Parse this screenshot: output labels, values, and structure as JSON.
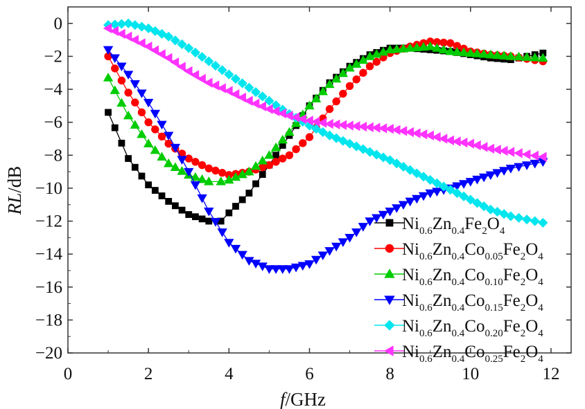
{
  "chart_data": {
    "type": "line",
    "xlabel": {
      "var": "f",
      "unit": "/GHz"
    },
    "ylabel": {
      "var": "RL",
      "unit": "/dB"
    },
    "xlim": [
      0,
      12.5
    ],
    "ylim": [
      -20,
      1
    ],
    "xticks": [
      "0",
      "2",
      "4",
      "6",
      "8",
      "10",
      "12"
    ],
    "yticks": [
      "0",
      "−2",
      "−4",
      "−6",
      "−8",
      "−10",
      "−12",
      "−14",
      "−16",
      "−18",
      "−20"
    ],
    "grid": false,
    "legend_position": "bottom-right",
    "series": [
      {
        "name": "Ni0.6Zn0.4Fe2O4",
        "legend_parts": [
          [
            "Ni",
            ""
          ],
          [
            "0.6",
            "sub"
          ],
          [
            "Zn",
            ""
          ],
          [
            "0.4",
            "sub"
          ],
          [
            "Fe",
            ""
          ],
          [
            "2",
            "sub"
          ],
          [
            "O",
            ""
          ],
          [
            "4",
            "sub"
          ]
        ],
        "color": "#000000",
        "marker": "square",
        "x": [
          1.0,
          1.5,
          2.0,
          2.5,
          3.0,
          3.5,
          3.8,
          4.0,
          4.5,
          5.0,
          5.5,
          6.0,
          6.5,
          7.0,
          7.5,
          8.0,
          8.5,
          9.0,
          9.5,
          10.0,
          10.5,
          11.0,
          11.8
        ],
        "y": [
          -5.4,
          -8.2,
          -9.8,
          -10.8,
          -11.6,
          -12.0,
          -12.0,
          -11.5,
          -10.3,
          -8.6,
          -6.8,
          -5.0,
          -3.6,
          -2.6,
          -1.9,
          -1.5,
          -1.5,
          -1.6,
          -1.7,
          -1.9,
          -2.1,
          -2.2,
          -1.8
        ]
      },
      {
        "name": "Ni0.6Zn0.4Co0.05Fe2O4",
        "legend_parts": [
          [
            "Ni",
            ""
          ],
          [
            "0.6",
            "sub"
          ],
          [
            "Zn",
            ""
          ],
          [
            "0.4",
            "sub"
          ],
          [
            "Co",
            ""
          ],
          [
            "0.05",
            "sub"
          ],
          [
            "Fe",
            ""
          ],
          [
            "2",
            "sub"
          ],
          [
            "O",
            ""
          ],
          [
            "4",
            "sub"
          ]
        ],
        "color": "#ff0000",
        "marker": "circle",
        "x": [
          1.0,
          1.5,
          2.0,
          2.5,
          3.0,
          3.5,
          4.0,
          4.5,
          5.0,
          5.5,
          6.0,
          6.5,
          7.0,
          7.5,
          8.0,
          8.5,
          9.0,
          9.5,
          10.0,
          10.5,
          11.0,
          11.8
        ],
        "y": [
          -2.0,
          -4.2,
          -6.0,
          -7.3,
          -8.2,
          -8.8,
          -9.2,
          -9.0,
          -8.6,
          -8.0,
          -6.9,
          -5.2,
          -3.8,
          -2.6,
          -1.8,
          -1.4,
          -1.1,
          -1.2,
          -1.7,
          -1.9,
          -2.0,
          -2.3
        ]
      },
      {
        "name": "Ni0.6Zn0.4Co0.10Fe2O4",
        "legend_parts": [
          [
            "Ni",
            ""
          ],
          [
            "0.6",
            "sub"
          ],
          [
            "Zn",
            ""
          ],
          [
            "0.4",
            "sub"
          ],
          [
            "Co",
            ""
          ],
          [
            "0.10",
            "sub"
          ],
          [
            "Fe",
            ""
          ],
          [
            "2",
            "sub"
          ],
          [
            "O",
            ""
          ],
          [
            "4",
            "sub"
          ]
        ],
        "color": "#00cc00",
        "marker": "triangle-up",
        "x": [
          1.0,
          1.5,
          2.0,
          2.5,
          3.0,
          3.5,
          3.8,
          4.0,
          4.5,
          5.0,
          5.5,
          6.0,
          6.5,
          7.0,
          7.5,
          8.0,
          8.5,
          9.0,
          9.5,
          10.0,
          10.5,
          11.0,
          11.8
        ],
        "y": [
          -3.3,
          -5.6,
          -7.3,
          -8.5,
          -9.2,
          -9.6,
          -9.6,
          -9.5,
          -9.0,
          -8.0,
          -6.6,
          -5.0,
          -3.7,
          -2.7,
          -2.0,
          -1.6,
          -1.5,
          -1.4,
          -1.7,
          -1.8,
          -1.9,
          -2.0,
          -2.1
        ]
      },
      {
        "name": "Ni0.6Zn0.4Co0.15Fe2O4",
        "legend_parts": [
          [
            "Ni",
            ""
          ],
          [
            "0.6",
            "sub"
          ],
          [
            "Zn",
            ""
          ],
          [
            "0.4",
            "sub"
          ],
          [
            "Co",
            ""
          ],
          [
            "0.15",
            "sub"
          ],
          [
            "Fe",
            ""
          ],
          [
            "2",
            "sub"
          ],
          [
            "O",
            ""
          ],
          [
            "4",
            "sub"
          ]
        ],
        "color": "#0000ff",
        "marker": "triangle-down",
        "x": [
          1.0,
          1.5,
          2.0,
          2.5,
          3.0,
          3.5,
          4.0,
          4.5,
          5.0,
          5.5,
          6.0,
          6.5,
          7.0,
          7.5,
          8.0,
          8.5,
          9.0,
          9.5,
          10.0,
          10.5,
          11.0,
          11.8
        ],
        "y": [
          -1.6,
          -3.1,
          -4.8,
          -6.8,
          -9.0,
          -11.4,
          -13.3,
          -14.4,
          -14.9,
          -14.9,
          -14.6,
          -13.8,
          -13.0,
          -12.0,
          -11.4,
          -10.8,
          -10.3,
          -10.0,
          -9.6,
          -9.2,
          -8.8,
          -8.4
        ]
      },
      {
        "name": "Ni0.6Zn0.4Co0.20Fe2O4",
        "legend_parts": [
          [
            "Ni",
            ""
          ],
          [
            "0.6",
            "sub"
          ],
          [
            "Zn",
            ""
          ],
          [
            "0.4",
            "sub"
          ],
          [
            "Co",
            ""
          ],
          [
            "0.20",
            "sub"
          ],
          [
            "Fe",
            ""
          ],
          [
            "2",
            "sub"
          ],
          [
            "O",
            ""
          ],
          [
            "4",
            "sub"
          ]
        ],
        "color": "#00e5ee",
        "marker": "diamond",
        "x": [
          1.0,
          1.5,
          2.0,
          2.5,
          3.0,
          3.5,
          4.0,
          4.5,
          5.0,
          5.5,
          6.0,
          6.5,
          7.0,
          7.5,
          8.0,
          8.5,
          9.0,
          9.5,
          10.0,
          10.5,
          11.0,
          11.8
        ],
        "y": [
          -0.1,
          0.0,
          -0.3,
          -0.8,
          -1.5,
          -2.3,
          -3.1,
          -3.9,
          -4.7,
          -5.5,
          -6.2,
          -6.8,
          -7.3,
          -7.8,
          -8.3,
          -8.9,
          -9.5,
          -10.1,
          -10.7,
          -11.3,
          -11.7,
          -12.1
        ]
      },
      {
        "name": "Ni0.6Zn0.4Co0.25Fe2O4",
        "legend_parts": [
          [
            "Ni",
            ""
          ],
          [
            "0.6",
            "sub"
          ],
          [
            "Zn",
            ""
          ],
          [
            "0.4",
            "sub"
          ],
          [
            "Co",
            ""
          ],
          [
            "0.25",
            "sub"
          ],
          [
            "Fe",
            ""
          ],
          [
            "2",
            "sub"
          ],
          [
            "O",
            ""
          ],
          [
            "4",
            "sub"
          ]
        ],
        "color": "#ff33ff",
        "marker": "triangle-left",
        "x": [
          1.0,
          1.5,
          2.0,
          2.5,
          3.0,
          3.5,
          4.0,
          4.5,
          5.0,
          5.5,
          6.0,
          6.5,
          7.0,
          7.5,
          8.0,
          8.5,
          9.0,
          9.5,
          10.0,
          10.5,
          11.0,
          11.8
        ],
        "y": [
          -0.3,
          -0.8,
          -1.4,
          -2.1,
          -2.9,
          -3.6,
          -4.1,
          -4.7,
          -5.2,
          -5.6,
          -5.9,
          -6.1,
          -6.2,
          -6.3,
          -6.4,
          -6.6,
          -6.8,
          -7.1,
          -7.3,
          -7.6,
          -7.8,
          -8.1
        ]
      }
    ]
  }
}
